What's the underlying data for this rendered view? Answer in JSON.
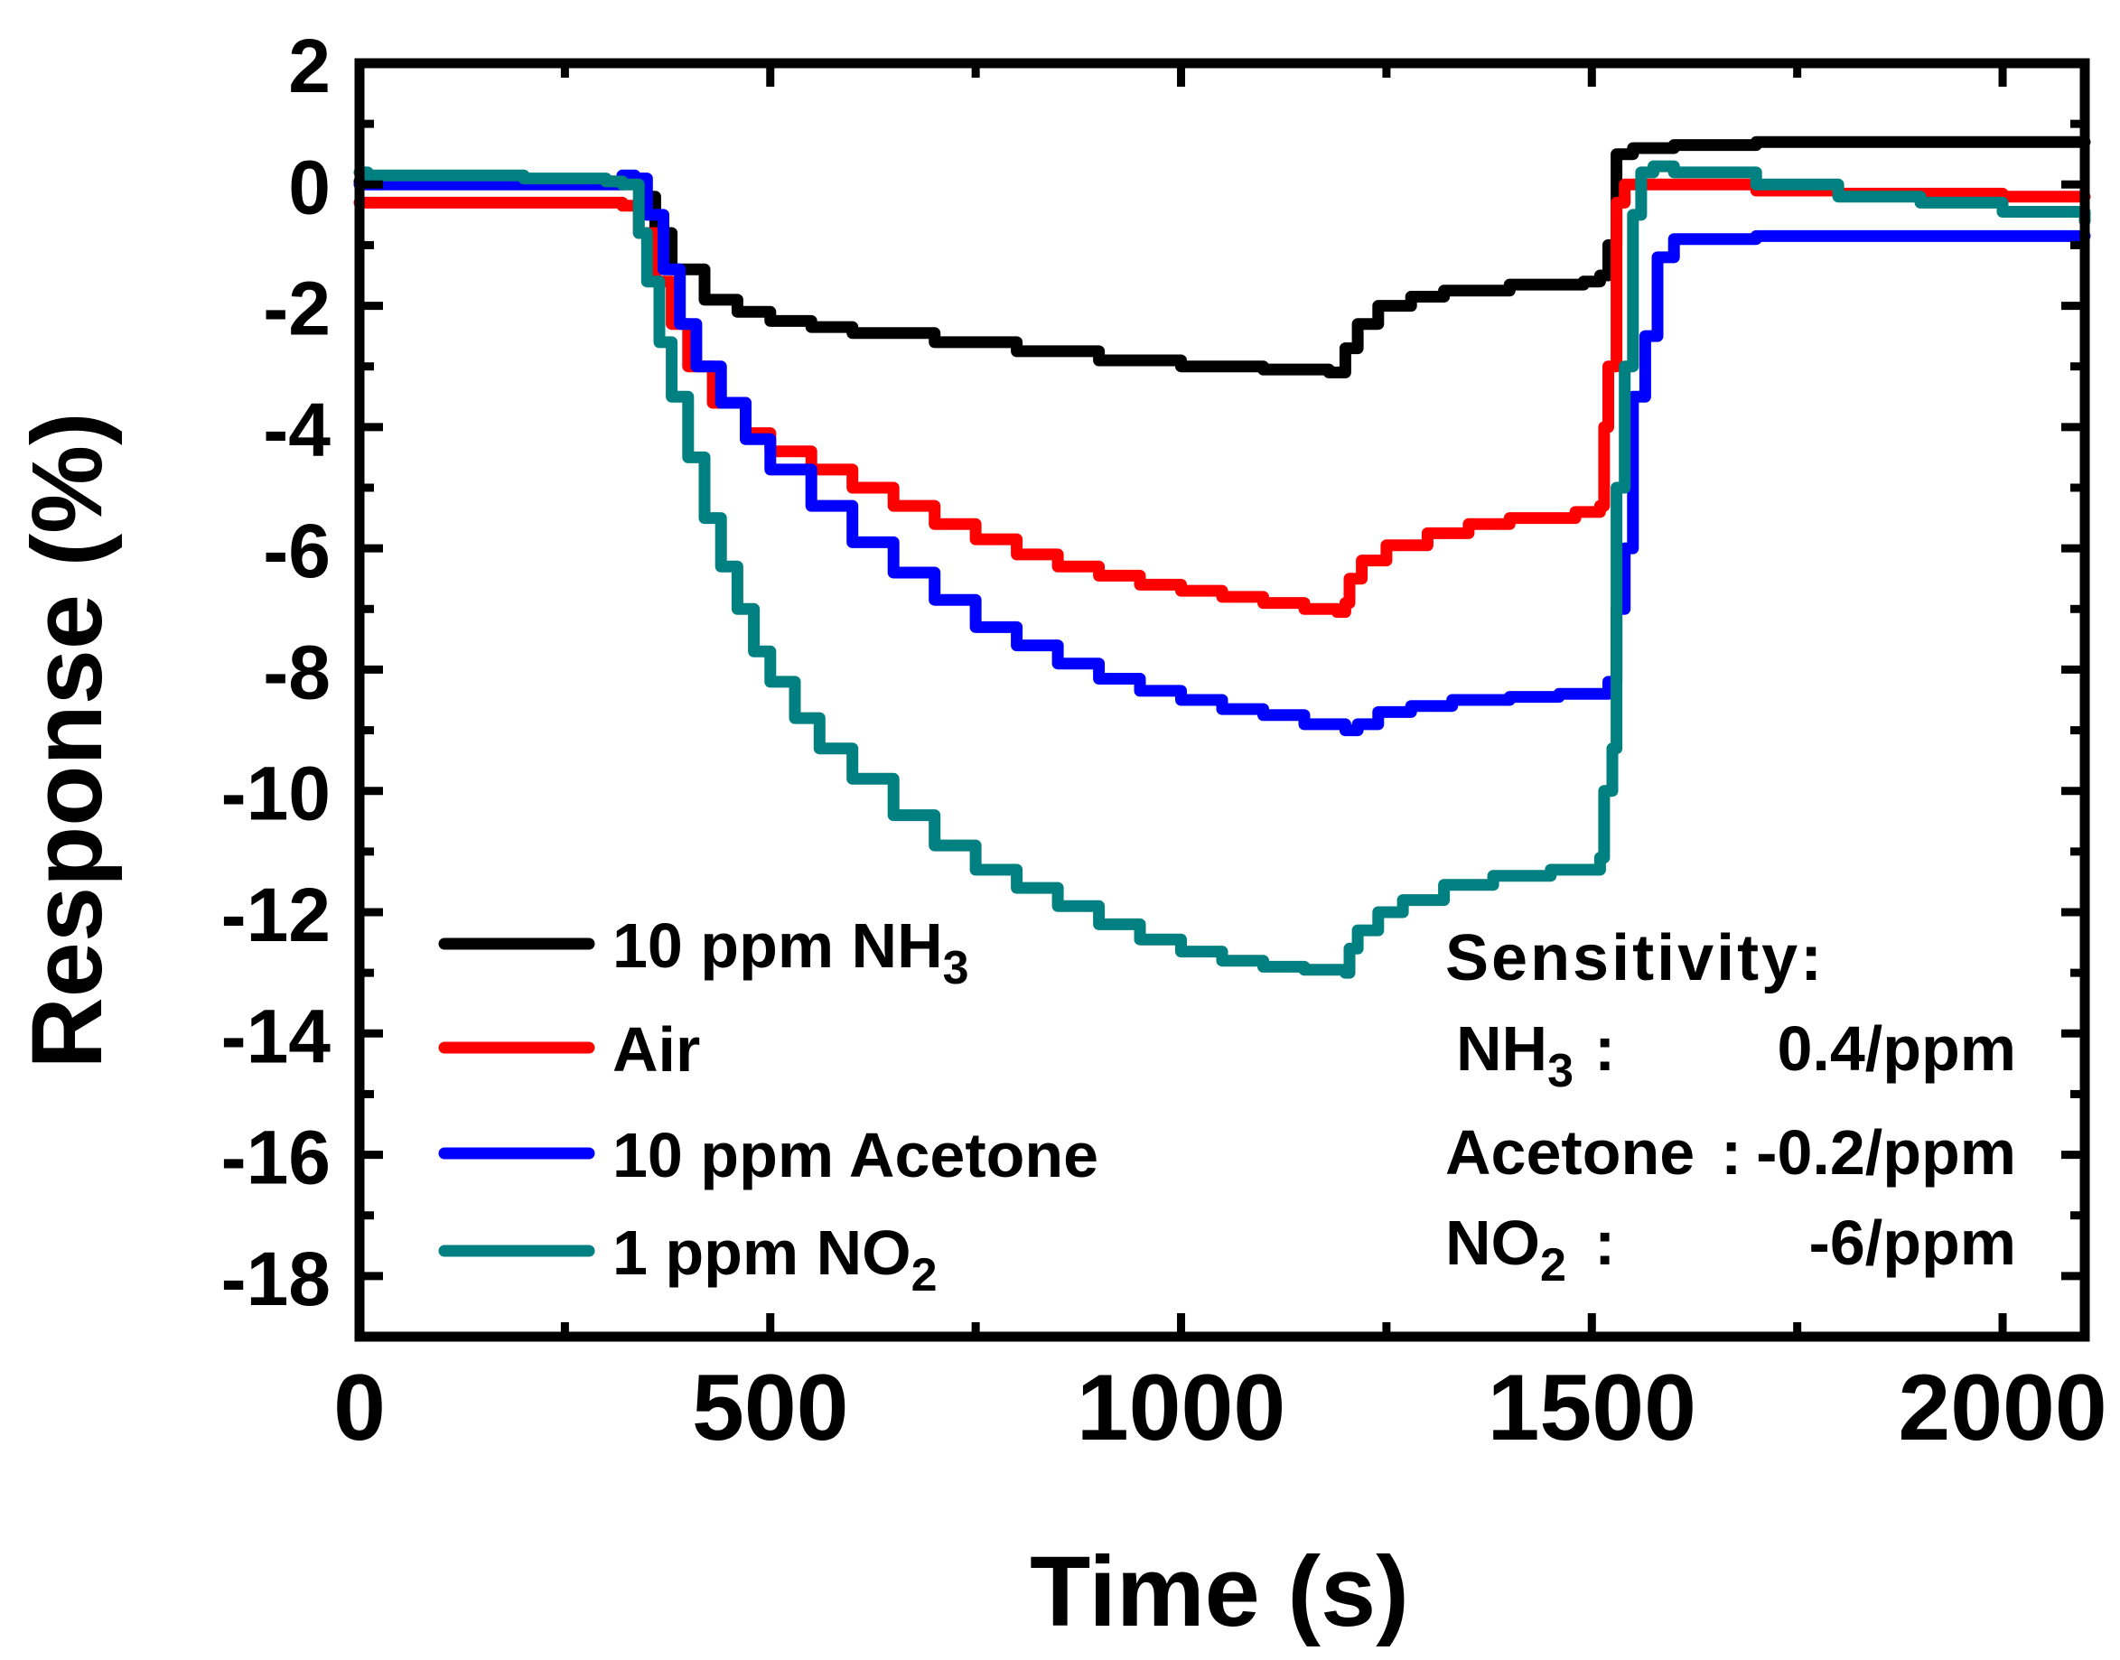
{
  "chart_data": {
    "type": "line",
    "xlabel": "Time (s)",
    "ylabel": "Response (%)",
    "xlim": [
      0,
      2100
    ],
    "ylim": [
      -19,
      2
    ],
    "x_ticks": [
      0,
      500,
      1000,
      1500,
      2000
    ],
    "x_minor_ticks": [
      250,
      750,
      1250,
      1750
    ],
    "y_ticks": [
      2,
      0,
      -2,
      -4,
      -6,
      -8,
      -10,
      -12,
      -14,
      -16,
      -18
    ],
    "y_minor_ticks": [
      1,
      -1,
      -3,
      -5,
      -7,
      -9,
      -11,
      -13,
      -15,
      -17
    ],
    "x_tick_labels": [
      "0",
      "500",
      "1000",
      "1500",
      "2000"
    ],
    "y_tick_labels": [
      "2",
      "0",
      "-2",
      "-4",
      "-6",
      "-8",
      "-10",
      "-12",
      "-14",
      "-16",
      "-18"
    ],
    "series": [
      {
        "name": "10 ppm NH3",
        "legend_main": "10 ppm NH",
        "legend_sub": "3",
        "color": "#000000",
        "points": [
          [
            0,
            0.05
          ],
          [
            200,
            0.05
          ],
          [
            320,
            0.05
          ],
          [
            345,
            -0.2
          ],
          [
            360,
            -0.8
          ],
          [
            380,
            -1.4
          ],
          [
            420,
            -1.9
          ],
          [
            460,
            -2.1
          ],
          [
            500,
            -2.25
          ],
          [
            550,
            -2.35
          ],
          [
            600,
            -2.45
          ],
          [
            700,
            -2.6
          ],
          [
            800,
            -2.75
          ],
          [
            900,
            -2.9
          ],
          [
            1000,
            -3.0
          ],
          [
            1100,
            -3.05
          ],
          [
            1150,
            -3.05
          ],
          [
            1180,
            -3.1
          ],
          [
            1195,
            -3.1
          ],
          [
            1200,
            -2.7
          ],
          [
            1215,
            -2.3
          ],
          [
            1240,
            -2.0
          ],
          [
            1280,
            -1.85
          ],
          [
            1320,
            -1.75
          ],
          [
            1400,
            -1.65
          ],
          [
            1490,
            -1.6
          ],
          [
            1510,
            -1.5
          ],
          [
            1520,
            -1.0
          ],
          [
            1530,
            0.5
          ],
          [
            1550,
            0.6
          ],
          [
            1600,
            0.65
          ],
          [
            1700,
            0.7
          ],
          [
            2100,
            0.7
          ]
        ]
      },
      {
        "name": "Air",
        "legend_main": "Air",
        "legend_sub": "",
        "color": "#ff0000",
        "points": [
          [
            0,
            -0.3
          ],
          [
            300,
            -0.3
          ],
          [
            320,
            -0.35
          ],
          [
            340,
            -0.8
          ],
          [
            360,
            -1.6
          ],
          [
            380,
            -2.3
          ],
          [
            400,
            -3.0
          ],
          [
            430,
            -3.6
          ],
          [
            470,
            -4.1
          ],
          [
            500,
            -4.4
          ],
          [
            550,
            -4.7
          ],
          [
            600,
            -5.0
          ],
          [
            650,
            -5.3
          ],
          [
            700,
            -5.6
          ],
          [
            750,
            -5.85
          ],
          [
            800,
            -6.1
          ],
          [
            850,
            -6.3
          ],
          [
            900,
            -6.45
          ],
          [
            950,
            -6.6
          ],
          [
            1000,
            -6.7
          ],
          [
            1050,
            -6.8
          ],
          [
            1100,
            -6.9
          ],
          [
            1150,
            -7.0
          ],
          [
            1190,
            -7.05
          ],
          [
            1200,
            -6.9
          ],
          [
            1205,
            -6.5
          ],
          [
            1220,
            -6.2
          ],
          [
            1250,
            -5.95
          ],
          [
            1300,
            -5.75
          ],
          [
            1350,
            -5.6
          ],
          [
            1400,
            -5.5
          ],
          [
            1480,
            -5.4
          ],
          [
            1510,
            -5.3
          ],
          [
            1515,
            -4.0
          ],
          [
            1520,
            -3.0
          ],
          [
            1530,
            -0.3
          ],
          [
            1540,
            0.0
          ],
          [
            1600,
            0.0
          ],
          [
            1650,
            0.0
          ],
          [
            1700,
            -0.1
          ],
          [
            1800,
            -0.15
          ],
          [
            2000,
            -0.2
          ],
          [
            2100,
            -0.2
          ]
        ]
      },
      {
        "name": "10 ppm Acetone",
        "legend_main": "10 ppm Acetone",
        "legend_sub": "",
        "color": "#0000ff",
        "points": [
          [
            0,
            0.0
          ],
          [
            300,
            0.0
          ],
          [
            320,
            0.15
          ],
          [
            335,
            0.1
          ],
          [
            350,
            -0.5
          ],
          [
            370,
            -1.4
          ],
          [
            390,
            -2.3
          ],
          [
            410,
            -3.0
          ],
          [
            440,
            -3.6
          ],
          [
            470,
            -4.2
          ],
          [
            500,
            -4.7
          ],
          [
            550,
            -5.3
          ],
          [
            600,
            -5.9
          ],
          [
            650,
            -6.4
          ],
          [
            700,
            -6.85
          ],
          [
            750,
            -7.3
          ],
          [
            800,
            -7.6
          ],
          [
            850,
            -7.9
          ],
          [
            900,
            -8.15
          ],
          [
            950,
            -8.35
          ],
          [
            1000,
            -8.5
          ],
          [
            1050,
            -8.65
          ],
          [
            1100,
            -8.75
          ],
          [
            1150,
            -8.9
          ],
          [
            1200,
            -9.0
          ],
          [
            1215,
            -8.9
          ],
          [
            1240,
            -8.7
          ],
          [
            1280,
            -8.6
          ],
          [
            1330,
            -8.5
          ],
          [
            1400,
            -8.45
          ],
          [
            1460,
            -8.4
          ],
          [
            1510,
            -8.4
          ],
          [
            1520,
            -8.2
          ],
          [
            1530,
            -7.0
          ],
          [
            1540,
            -6.0
          ],
          [
            1550,
            -3.5
          ],
          [
            1565,
            -2.5
          ],
          [
            1580,
            -1.2
          ],
          [
            1600,
            -0.9
          ],
          [
            1650,
            -0.9
          ],
          [
            1700,
            -0.85
          ],
          [
            2100,
            -0.85
          ]
        ]
      },
      {
        "name": "1 ppm NO2",
        "legend_main": "1 ppm NO",
        "legend_sub": "2",
        "color": "#008080",
        "points": [
          [
            0,
            0.2
          ],
          [
            10,
            0.15
          ],
          [
            200,
            0.1
          ],
          [
            300,
            0.05
          ],
          [
            320,
            0.0
          ],
          [
            340,
            -0.8
          ],
          [
            350,
            -1.6
          ],
          [
            365,
            -2.6
          ],
          [
            380,
            -3.5
          ],
          [
            400,
            -4.5
          ],
          [
            420,
            -5.5
          ],
          [
            440,
            -6.3
          ],
          [
            460,
            -7.0
          ],
          [
            480,
            -7.7
          ],
          [
            500,
            -8.2
          ],
          [
            530,
            -8.8
          ],
          [
            560,
            -9.3
          ],
          [
            600,
            -9.8
          ],
          [
            650,
            -10.4
          ],
          [
            700,
            -10.9
          ],
          [
            750,
            -11.3
          ],
          [
            800,
            -11.6
          ],
          [
            850,
            -11.9
          ],
          [
            900,
            -12.2
          ],
          [
            950,
            -12.45
          ],
          [
            1000,
            -12.65
          ],
          [
            1050,
            -12.8
          ],
          [
            1100,
            -12.9
          ],
          [
            1150,
            -12.95
          ],
          [
            1200,
            -13.0
          ],
          [
            1205,
            -12.6
          ],
          [
            1215,
            -12.3
          ],
          [
            1240,
            -12.0
          ],
          [
            1270,
            -11.8
          ],
          [
            1320,
            -11.55
          ],
          [
            1380,
            -11.4
          ],
          [
            1450,
            -11.3
          ],
          [
            1510,
            -11.1
          ],
          [
            1515,
            -10.0
          ],
          [
            1525,
            -9.3
          ],
          [
            1530,
            -5.0
          ],
          [
            1540,
            -3.0
          ],
          [
            1550,
            -0.5
          ],
          [
            1560,
            0.2
          ],
          [
            1575,
            0.3
          ],
          [
            1600,
            0.2
          ],
          [
            1700,
            0.0
          ],
          [
            1800,
            -0.2
          ],
          [
            1900,
            -0.3
          ],
          [
            2000,
            -0.45
          ],
          [
            2100,
            -0.6
          ]
        ]
      }
    ],
    "annotation": {
      "title": "Sensitivity:",
      "rows": [
        {
          "gas_main": "NH",
          "gas_sub": "3",
          "sep": ":",
          "value": "0.4/ppm"
        },
        {
          "gas_main": "Acetone",
          "gas_sub": "",
          "sep": ":",
          "value": "-0.2/ppm"
        },
        {
          "gas_main": "NO",
          "gas_sub": "2",
          "sep": ":",
          "value": "-6/ppm"
        }
      ]
    },
    "legend_placement": "bottom-left",
    "grid": false
  }
}
